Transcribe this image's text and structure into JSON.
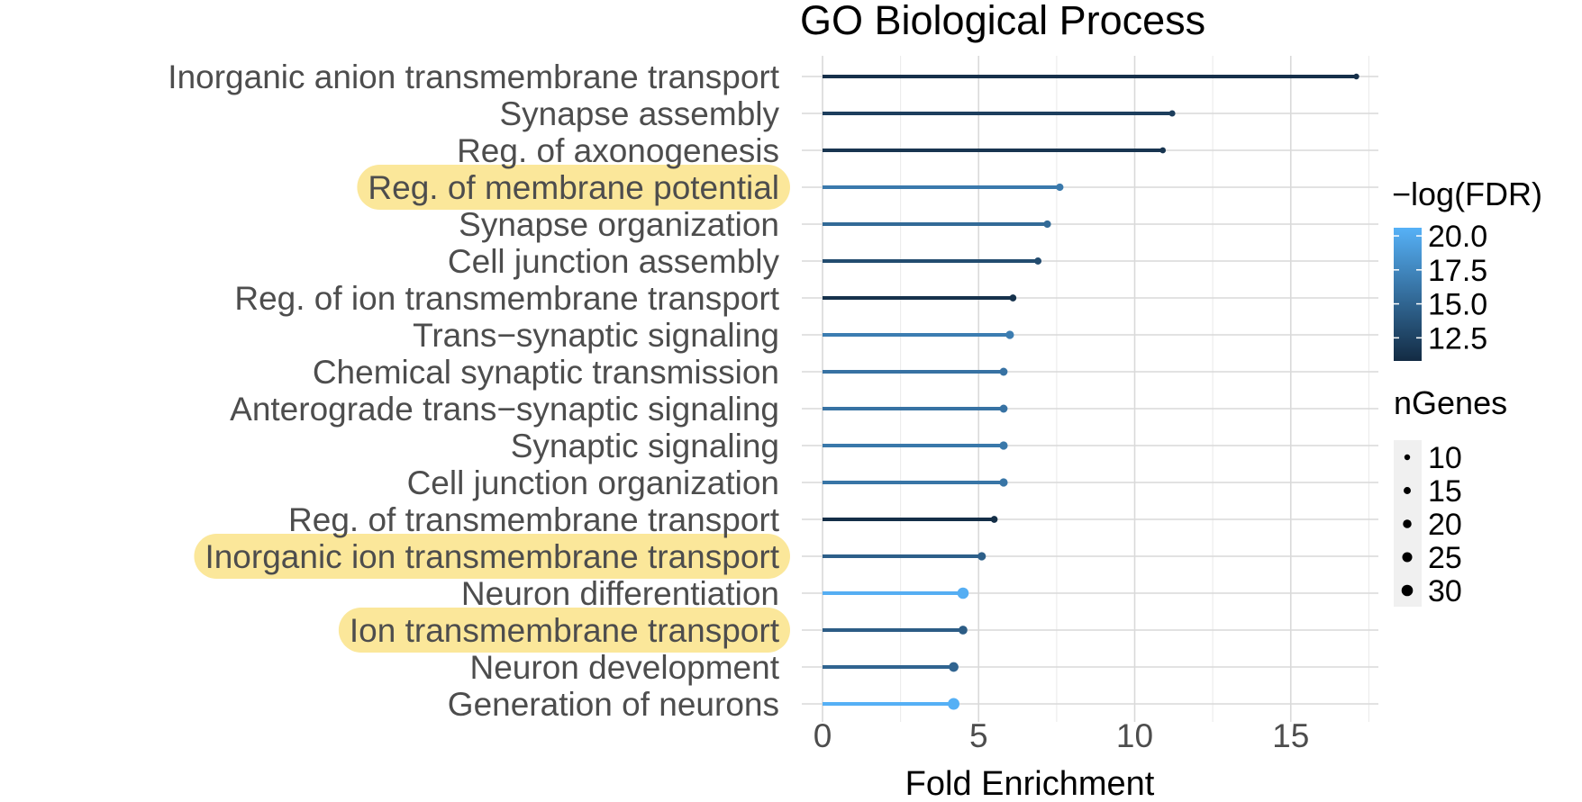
{
  "chart_data": {
    "type": "lollipop",
    "title": "GO Biological Process",
    "xlabel": "Fold Enrichment",
    "ylabel": "",
    "xlim": [
      0,
      18
    ],
    "x_ticks": [
      "0",
      "5",
      "10",
      "15"
    ],
    "grid": true,
    "highlight_color": "#fbe79a",
    "color_low": "#132b43",
    "color_high": "#56b1f7",
    "terms": [
      {
        "label": "Inorganic anion transmembrane transport",
        "fold": 17.1,
        "neglogFDR": 11.2,
        "ngenes": 10,
        "highlighted": false
      },
      {
        "label": "Synapse assembly",
        "fold": 11.2,
        "neglogFDR": 12.2,
        "ngenes": 12,
        "highlighted": false
      },
      {
        "label": "Reg. of axonogenesis",
        "fold": 10.9,
        "neglogFDR": 11.5,
        "ngenes": 11,
        "highlighted": false
      },
      {
        "label": "Reg. of membrane potential",
        "fold": 7.6,
        "neglogFDR": 16.5,
        "ngenes": 16,
        "highlighted": true
      },
      {
        "label": "Synapse organization",
        "fold": 7.2,
        "neglogFDR": 15.4,
        "ngenes": 16,
        "highlighted": false
      },
      {
        "label": "Cell junction assembly",
        "fold": 6.9,
        "neglogFDR": 13.2,
        "ngenes": 15,
        "highlighted": false
      },
      {
        "label": "Reg. of ion transmembrane transport",
        "fold": 6.1,
        "neglogFDR": 11.3,
        "ngenes": 14,
        "highlighted": false
      },
      {
        "label": "Trans−synaptic signaling",
        "fold": 6.0,
        "neglogFDR": 16.8,
        "ngenes": 19,
        "highlighted": false
      },
      {
        "label": "Chemical synaptic transmission",
        "fold": 5.8,
        "neglogFDR": 16.0,
        "ngenes": 18,
        "highlighted": false
      },
      {
        "label": "Anterograde trans−synaptic signaling",
        "fold": 5.8,
        "neglogFDR": 16.0,
        "ngenes": 18,
        "highlighted": false
      },
      {
        "label": "Synaptic signaling",
        "fold": 5.8,
        "neglogFDR": 16.4,
        "ngenes": 19,
        "highlighted": false
      },
      {
        "label": "Cell junction organization",
        "fold": 5.8,
        "neglogFDR": 16.2,
        "ngenes": 19,
        "highlighted": false
      },
      {
        "label": "Reg. of transmembrane transport",
        "fold": 5.5,
        "neglogFDR": 11.0,
        "ngenes": 14,
        "highlighted": false
      },
      {
        "label": "Inorganic ion transmembrane transport",
        "fold": 5.1,
        "neglogFDR": 14.6,
        "ngenes": 19,
        "highlighted": true
      },
      {
        "label": "Neuron differentiation",
        "fold": 4.5,
        "neglogFDR": 20.4,
        "ngenes": 30,
        "highlighted": false
      },
      {
        "label": "Ion transmembrane transport",
        "fold": 4.5,
        "neglogFDR": 14.4,
        "ngenes": 21,
        "highlighted": true
      },
      {
        "label": "Neuron development",
        "fold": 4.2,
        "neglogFDR": 15.0,
        "ngenes": 24,
        "highlighted": false
      },
      {
        "label": "Generation of neurons",
        "fold": 4.2,
        "neglogFDR": 20.5,
        "ngenes": 31,
        "highlighted": false
      }
    ],
    "legend": {
      "color": {
        "title": "−log(FDR)",
        "min": 10.8,
        "max": 20.6,
        "breaks": [
          {
            "value": 20.0,
            "label": "20.0"
          },
          {
            "value": 17.5,
            "label": "17.5"
          },
          {
            "value": 15.0,
            "label": "15.0"
          },
          {
            "value": 12.5,
            "label": "12.5"
          }
        ]
      },
      "size": {
        "title": "nGenes",
        "breaks": [
          {
            "value": 10,
            "label": "10"
          },
          {
            "value": 15,
            "label": "15"
          },
          {
            "value": 20,
            "label": "20"
          },
          {
            "value": 25,
            "label": "25"
          },
          {
            "value": 30,
            "label": "30"
          }
        ]
      }
    }
  }
}
